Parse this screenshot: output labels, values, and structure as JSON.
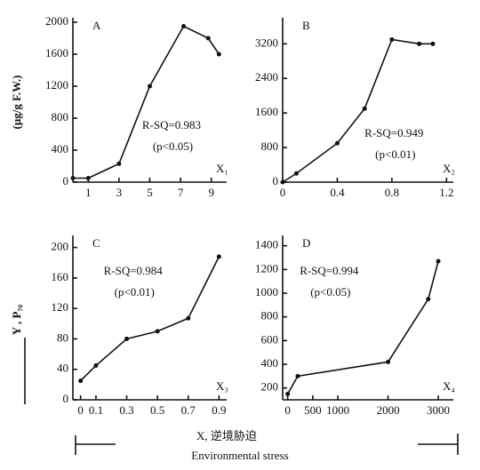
{
  "chart_data": [
    {
      "type": "line",
      "panel": "A",
      "ylabel": "(μg/g F.W.)",
      "xlabel": "X₁",
      "annotations": [
        "R-SQ=0.983",
        "(p<0.05)"
      ],
      "xlim": [
        0,
        10
      ],
      "xticks": [
        1,
        3,
        5,
        7,
        9
      ],
      "ylim": [
        0,
        2000
      ],
      "yticks": [
        0,
        400,
        800,
        1200,
        1600,
        2000
      ],
      "series": [
        {
          "color": "#111111",
          "x": [
            0,
            1,
            3,
            5,
            7.2,
            8.8,
            9.5
          ],
          "values": [
            50,
            50,
            230,
            1200,
            1950,
            1800,
            1600
          ]
        }
      ]
    },
    {
      "type": "line",
      "panel": "B",
      "xlabel": "X₂",
      "annotations": [
        "R-SQ=0.949",
        "(p<0.01)"
      ],
      "xlim": [
        0,
        1.25
      ],
      "xticks": [
        0,
        0.4,
        0.8,
        1.2
      ],
      "ylim": [
        0,
        3700
      ],
      "yticks": [
        0,
        800,
        1600,
        2400,
        3200
      ],
      "series": [
        {
          "color": "#111111",
          "x": [
            0,
            0.1,
            0.4,
            0.6,
            0.8,
            1.0,
            1.1
          ],
          "values": [
            0,
            200,
            900,
            1700,
            3300,
            3200,
            3200
          ]
        }
      ]
    },
    {
      "type": "line",
      "panel": "C",
      "ylabel": "Y , P₇₀",
      "xlabel": "X₃",
      "annotations": [
        "R-SQ=0.984",
        "(p<0.01)"
      ],
      "xlim": [
        -0.05,
        0.95
      ],
      "xticks": [
        0,
        0.1,
        0.3,
        0.5,
        0.7,
        0.9
      ],
      "ylim": [
        0,
        210
      ],
      "yticks": [
        0,
        40,
        80,
        120,
        160,
        200
      ],
      "series": [
        {
          "color": "#111111",
          "x": [
            0,
            0.1,
            0.3,
            0.5,
            0.7,
            0.9
          ],
          "values": [
            25,
            45,
            80,
            90,
            107,
            188
          ]
        }
      ]
    },
    {
      "type": "line",
      "panel": "D",
      "xlabel": "X₄",
      "annotations": [
        "R-SQ=0.994",
        "(p<0.05)"
      ],
      "xlim": [
        -100,
        3300
      ],
      "xticks": [
        0,
        500,
        1000,
        2000,
        3000
      ],
      "ylim": [
        100,
        1450
      ],
      "yticks": [
        200,
        400,
        600,
        800,
        1000,
        1200,
        1400
      ],
      "series": [
        {
          "color": "#111111",
          "x": [
            0,
            200,
            2000,
            2800,
            3000
          ],
          "values": [
            150,
            300,
            420,
            950,
            1270
          ]
        }
      ]
    }
  ],
  "footer": {
    "line1": "X, 逆境胁迫",
    "line2": "Environmental stress"
  }
}
